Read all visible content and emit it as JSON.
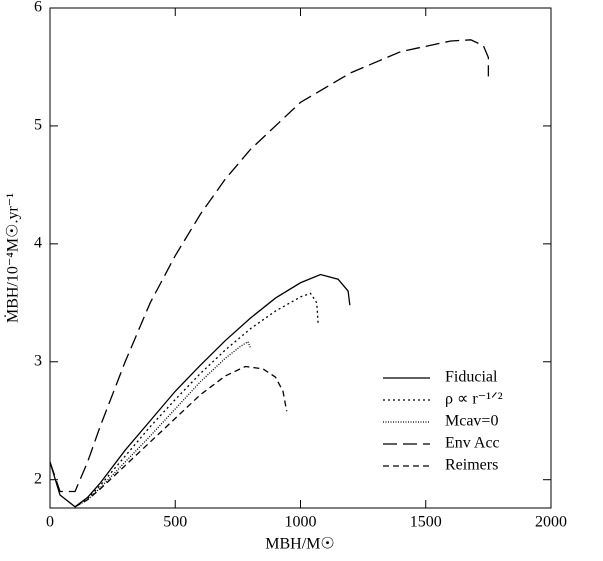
{
  "chart_data": {
    "type": "line",
    "xlabel": "MBH/M☉",
    "ylabel": "ṀBH/10⁻⁴M☉.yr⁻¹",
    "xlim": [
      0,
      2000
    ],
    "xticks": [
      0,
      500,
      1000,
      1500,
      2000
    ],
    "ylim": [
      1.76,
      6
    ],
    "yticks": [
      2,
      3,
      4,
      5,
      6
    ],
    "legend": "lower-right",
    "series": [
      {
        "name": "Fiducial",
        "color": "#000000",
        "dash": "solid",
        "x": [
          0,
          40,
          100,
          150,
          200,
          300,
          400,
          500,
          600,
          700,
          800,
          900,
          1000,
          1080,
          1150,
          1190,
          1197
        ],
        "values": [
          2.15,
          1.87,
          1.77,
          1.85,
          1.97,
          2.25,
          2.5,
          2.75,
          2.97,
          3.18,
          3.37,
          3.54,
          3.67,
          3.74,
          3.7,
          3.6,
          3.48
        ]
      },
      {
        "name": "ρ ∝ r⁻¹ᐟ²",
        "color": "#000000",
        "dash": "dotted",
        "x": [
          100,
          150,
          200,
          300,
          400,
          500,
          600,
          700,
          800,
          900,
          1000,
          1040,
          1065,
          1070
        ],
        "values": [
          1.77,
          1.84,
          1.95,
          2.2,
          2.45,
          2.68,
          2.9,
          3.1,
          3.28,
          3.43,
          3.55,
          3.58,
          3.5,
          3.33
        ]
      },
      {
        "name": "Mcav=0",
        "color": "#000000",
        "dash": "fine-dotted",
        "x": [
          100,
          150,
          200,
          300,
          400,
          500,
          600,
          700,
          760,
          790,
          800
        ],
        "values": [
          1.77,
          1.83,
          1.93,
          2.15,
          2.37,
          2.6,
          2.83,
          3.03,
          3.13,
          3.17,
          3.12
        ]
      },
      {
        "name": "Env Acc",
        "color": "#000000",
        "dash": "long-dash",
        "x": [
          0,
          40,
          100,
          150,
          200,
          300,
          400,
          500,
          600,
          700,
          800,
          1000,
          1200,
          1400,
          1600,
          1680,
          1730,
          1750,
          1750
        ],
        "values": [
          2.15,
          1.9,
          1.9,
          2.15,
          2.45,
          3.0,
          3.5,
          3.9,
          4.25,
          4.55,
          4.8,
          5.2,
          5.45,
          5.63,
          5.72,
          5.73,
          5.68,
          5.58,
          5.42
        ]
      },
      {
        "name": "Reimers",
        "color": "#000000",
        "dash": "dash",
        "x": [
          100,
          150,
          200,
          300,
          400,
          500,
          600,
          700,
          780,
          850,
          900,
          930,
          945
        ],
        "values": [
          1.77,
          1.83,
          1.92,
          2.12,
          2.32,
          2.52,
          2.72,
          2.88,
          2.96,
          2.94,
          2.87,
          2.75,
          2.58
        ]
      }
    ]
  }
}
